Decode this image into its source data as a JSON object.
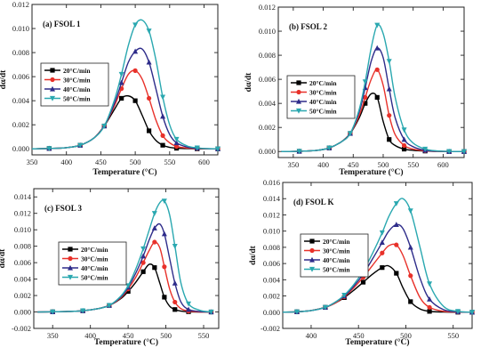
{
  "chart_data": [
    {
      "type": "line",
      "title": "(a) FSOL 1",
      "xlabel": "Temperature (°C)",
      "ylabel": "dα/dt",
      "xlim": [
        350,
        620
      ],
      "ylim": [
        -0.0005,
        0.012
      ],
      "xticks": [
        "350",
        "400",
        "450",
        "500",
        "550",
        "600"
      ],
      "yticks": [
        "0.000",
        "0.002",
        "0.004",
        "0.006",
        "0.008",
        "0.010",
        "0.012"
      ],
      "x": [
        350,
        375,
        400,
        420,
        440,
        455,
        470,
        480,
        490,
        500,
        510,
        520,
        530,
        540,
        550,
        560,
        575,
        590,
        605,
        620
      ],
      "series": [
        {
          "name": "20°C/min",
          "color": "#000000",
          "marker": "square",
          "values": [
            0.0,
            3e-05,
            0.0001,
            0.0003,
            0.0009,
            0.0019,
            0.0033,
            0.0042,
            0.0044,
            0.004,
            0.0028,
            0.0015,
            0.0007,
            0.0003,
            0.00012,
            5e-05,
            2e-05,
            0.0,
            0.0,
            0.0
          ]
        },
        {
          "name": "30°C/min",
          "color": "#e8312a",
          "marker": "circle",
          "values": [
            0.0,
            3e-05,
            0.0001,
            0.0003,
            0.0009,
            0.0019,
            0.0036,
            0.005,
            0.0062,
            0.0065,
            0.0058,
            0.0042,
            0.0024,
            0.0011,
            0.0005,
            0.0002,
            7e-05,
            2e-05,
            0.0,
            0.0
          ]
        },
        {
          "name": "40°C/min",
          "color": "#2e2c8a",
          "marker": "triangle-up",
          "values": [
            0.0,
            3e-05,
            0.0001,
            0.0003,
            0.0009,
            0.0019,
            0.0038,
            0.0055,
            0.0072,
            0.0081,
            0.0083,
            0.0072,
            0.005,
            0.0027,
            0.0012,
            0.0005,
            0.00015,
            5e-05,
            1e-05,
            0.0
          ]
        },
        {
          "name": "50°C/min",
          "color": "#2aa8b0",
          "marker": "triangle-down",
          "values": [
            0.0,
            3e-05,
            0.0001,
            0.0003,
            0.0009,
            0.0019,
            0.0041,
            0.0062,
            0.0086,
            0.0103,
            0.0107,
            0.0098,
            0.0074,
            0.0043,
            0.002,
            0.0008,
            0.00025,
            8e-05,
            2e-05,
            0.0
          ]
        }
      ]
    },
    {
      "type": "line",
      "title": "(b) FSOL 2",
      "xlabel": "Temperature (°C)",
      "ylabel": "dα/dt",
      "xlim": [
        325,
        635
      ],
      "ylim": [
        -0.0005,
        0.012
      ],
      "xticks": [
        "350",
        "400",
        "450",
        "500",
        "550",
        "600"
      ],
      "yticks": [
        "0.000",
        "0.002",
        "0.004",
        "0.006",
        "0.008",
        "0.010",
        "0.012"
      ],
      "x": [
        330,
        360,
        390,
        410,
        430,
        445,
        460,
        470,
        480,
        490,
        500,
        510,
        520,
        535,
        550,
        570,
        590,
        610,
        635
      ],
      "series": [
        {
          "name": "20°C/min",
          "color": "#000000",
          "marker": "square",
          "values": [
            0.0,
            2e-05,
            0.0001,
            0.0003,
            0.0008,
            0.0015,
            0.0028,
            0.004,
            0.0048,
            0.0045,
            0.0025,
            0.001,
            0.0005,
            0.0002,
            0.0001,
            4e-05,
            1e-05,
            0.0,
            0.0
          ]
        },
        {
          "name": "30°C/min",
          "color": "#e8312a",
          "marker": "circle",
          "values": [
            0.0,
            2e-05,
            0.0001,
            0.0003,
            0.0008,
            0.0015,
            0.003,
            0.0045,
            0.006,
            0.0068,
            0.0055,
            0.003,
            0.0014,
            0.0005,
            0.0002,
            6e-05,
            2e-05,
            0.0,
            0.0
          ]
        },
        {
          "name": "40°C/min",
          "color": "#2e2c8a",
          "marker": "triangle-up",
          "values": [
            0.0,
            2e-05,
            0.0001,
            0.0003,
            0.0008,
            0.0015,
            0.0033,
            0.0053,
            0.0075,
            0.0086,
            0.0078,
            0.0052,
            0.0028,
            0.001,
            0.0004,
            0.0001,
            3e-05,
            0.0,
            0.0
          ]
        },
        {
          "name": "50°C/min",
          "color": "#2aa8b0",
          "marker": "triangle-down",
          "values": [
            0.0,
            2e-05,
            0.0001,
            0.0003,
            0.0008,
            0.0015,
            0.0035,
            0.0058,
            0.0086,
            0.0105,
            0.0098,
            0.0075,
            0.0045,
            0.0018,
            0.0007,
            0.0002,
            5e-05,
            1e-05,
            0.0
          ]
        }
      ]
    },
    {
      "type": "line",
      "title": "(c) FSOL 3",
      "xlabel": "Temperature (°C)",
      "ylabel": "dα/dt",
      "xlim": [
        325,
        570
      ],
      "ylim": [
        -0.002,
        0.015
      ],
      "xticks": [
        "350",
        "400",
        "450",
        "500",
        "550"
      ],
      "yticks": [
        "-0.002",
        "0.000",
        "0.002",
        "0.004",
        "0.006",
        "0.008",
        "0.010",
        "0.012",
        "0.014"
      ],
      "x": [
        330,
        350,
        370,
        390,
        410,
        425,
        440,
        450,
        460,
        470,
        478,
        485,
        492,
        498,
        505,
        512,
        520,
        530,
        545,
        560
      ],
      "series": [
        {
          "name": "20°C/min",
          "color": "#000000",
          "marker": "square",
          "values": [
            0.0,
            2e-05,
            6e-05,
            0.00015,
            0.0004,
            0.0008,
            0.0016,
            0.0025,
            0.0036,
            0.0049,
            0.0058,
            0.0054,
            0.0035,
            0.0018,
            0.0007,
            0.0003,
            0.0001,
            3e-05,
            0.0,
            0.0
          ]
        },
        {
          "name": "30°C/min",
          "color": "#e8312a",
          "marker": "circle",
          "values": [
            0.0,
            2e-05,
            6e-05,
            0.00015,
            0.0004,
            0.0008,
            0.0017,
            0.0028,
            0.0042,
            0.006,
            0.0075,
            0.0085,
            0.0078,
            0.0055,
            0.0028,
            0.0012,
            0.0004,
            0.0001,
            0.0,
            0.0
          ]
        },
        {
          "name": "40°C/min",
          "color": "#2e2c8a",
          "marker": "triangle-up",
          "values": [
            0.0,
            2e-05,
            6e-05,
            0.00015,
            0.0004,
            0.0008,
            0.0018,
            0.003,
            0.0047,
            0.0068,
            0.0088,
            0.0102,
            0.0107,
            0.0095,
            0.0065,
            0.0035,
            0.0012,
            0.0003,
            5e-05,
            0.0
          ]
        },
        {
          "name": "50°C/min",
          "color": "#2aa8b0",
          "marker": "triangle-down",
          "values": [
            0.0,
            2e-05,
            6e-05,
            0.00015,
            0.0004,
            0.0008,
            0.0019,
            0.0032,
            0.0052,
            0.0077,
            0.01,
            0.012,
            0.0133,
            0.0135,
            0.0118,
            0.008,
            0.0035,
            0.001,
            0.0002,
            0.0
          ]
        }
      ]
    },
    {
      "type": "line",
      "title": "(d) FSOL K",
      "xlabel": "Temperature (°C)",
      "ylabel": "dα/dt",
      "xlim": [
        370,
        570
      ],
      "ylim": [
        -0.002,
        0.016
      ],
      "xticks": [
        "400",
        "450",
        "500",
        "550"
      ],
      "yticks": [
        "-0.002",
        "0.000",
        "0.002",
        "0.004",
        "0.006",
        "0.008",
        "0.010",
        "0.012",
        "0.014",
        "0.016"
      ],
      "x": [
        370,
        385,
        400,
        415,
        425,
        435,
        445,
        455,
        465,
        475,
        482,
        490,
        497,
        505,
        515,
        525,
        540,
        555,
        570
      ],
      "series": [
        {
          "name": "20°C/min",
          "color": "#000000",
          "marker": "square",
          "values": [
            0.0,
            5e-05,
            0.0002,
            0.0006,
            0.0011,
            0.0018,
            0.0027,
            0.0037,
            0.0047,
            0.0055,
            0.0057,
            0.0048,
            0.003,
            0.0013,
            0.0004,
            0.0001,
            2e-05,
            0.0,
            0.0
          ]
        },
        {
          "name": "30°C/min",
          "color": "#e8312a",
          "marker": "circle",
          "values": [
            0.0,
            5e-05,
            0.0002,
            0.0006,
            0.0011,
            0.0019,
            0.003,
            0.0043,
            0.0058,
            0.0073,
            0.0082,
            0.0083,
            0.007,
            0.0045,
            0.0018,
            0.0006,
            0.0001,
            2e-05,
            0.0
          ]
        },
        {
          "name": "40°C/min",
          "color": "#2e2c8a",
          "marker": "triangle-up",
          "values": [
            0.0,
            5e-05,
            0.0002,
            0.0006,
            0.0012,
            0.002,
            0.0032,
            0.0047,
            0.0066,
            0.0086,
            0.01,
            0.0108,
            0.0103,
            0.008,
            0.0042,
            0.0016,
            0.0003,
            5e-05,
            0.0
          ]
        },
        {
          "name": "50°C/min",
          "color": "#2aa8b0",
          "marker": "triangle-down",
          "values": [
            0.0,
            5e-05,
            0.0002,
            0.0006,
            0.0012,
            0.0021,
            0.0034,
            0.0051,
            0.0073,
            0.0098,
            0.0118,
            0.0134,
            0.014,
            0.0125,
            0.008,
            0.0035,
            0.0007,
            0.0001,
            0.0
          ]
        }
      ]
    }
  ]
}
